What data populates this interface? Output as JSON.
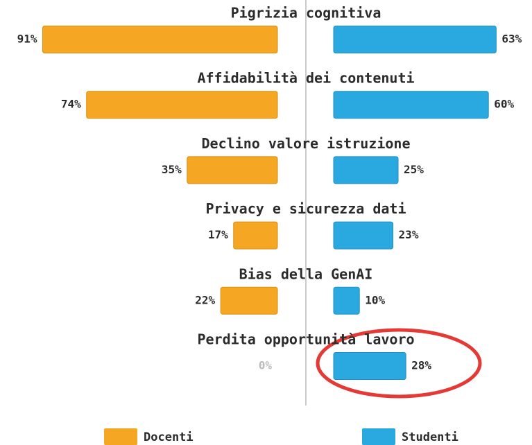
{
  "chart_data": {
    "type": "butterfly",
    "categories": [
      "Pigrizia cognitiva",
      "Affidabilità dei contenuti",
      "Declino valore istruzione",
      "Privacy e sicurezza dati",
      "Bias della GenAI",
      "Perdita opportunità lavoro"
    ],
    "series": [
      {
        "name": "Docenti",
        "color": "#f5a623",
        "values": [
          91,
          74,
          35,
          17,
          22,
          0
        ],
        "value_labels": [
          "91%",
          "74%",
          "35%",
          "17%",
          "22%",
          "0%"
        ]
      },
      {
        "name": "Studenti",
        "color": "#29a9e0",
        "values": [
          63,
          60,
          25,
          23,
          10,
          28
        ],
        "value_labels": [
          "63%",
          "60%",
          "25%",
          "23%",
          "10%",
          "28%"
        ]
      }
    ]
  }
}
